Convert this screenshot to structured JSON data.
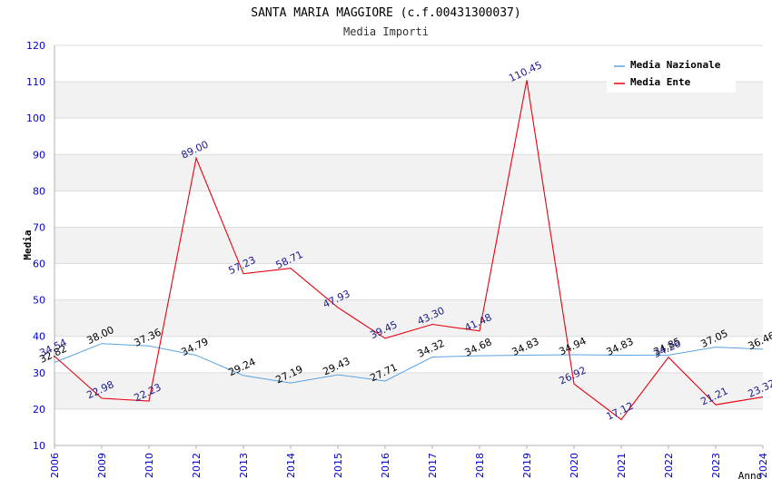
{
  "chart_data": {
    "type": "line",
    "title": "SANTA MARIA MAGGIORE (c.f.00431300037)",
    "subtitle": "Media Importi",
    "xlabel": "Anno",
    "ylabel": "Media",
    "ylim": [
      10,
      120
    ],
    "yticks": [
      10,
      20,
      30,
      40,
      50,
      60,
      70,
      80,
      90,
      100,
      110,
      120
    ],
    "categories": [
      "2006",
      "2009",
      "2010",
      "2012",
      "2013",
      "2014",
      "2015",
      "2016",
      "2017",
      "2018",
      "2019",
      "2020",
      "2021",
      "2022",
      "2023",
      "2024"
    ],
    "series": [
      {
        "name": "Media Nazionale",
        "color": "#5ba3e0",
        "label_color": "#000000",
        "values": [
          32.82,
          38.0,
          37.36,
          34.79,
          29.24,
          27.19,
          29.43,
          27.71,
          34.32,
          34.68,
          34.83,
          34.94,
          34.83,
          34.85,
          37.05,
          36.46
        ],
        "labels": [
          "32.82",
          "38.00",
          "37.36",
          "34.79",
          "29.24",
          "27.19",
          "29.43",
          "27.71",
          "34.32",
          "34.68",
          "34.83",
          "34.94",
          "34.83",
          "34.85",
          "37.05",
          "36.46"
        ]
      },
      {
        "name": "Media Ente",
        "color": "#e8000d",
        "label_color": "#1a1a8c",
        "values": [
          34.54,
          22.98,
          22.23,
          89.0,
          57.23,
          58.71,
          47.93,
          39.45,
          43.3,
          41.48,
          110.45,
          26.92,
          17.12,
          34.26,
          21.21,
          23.32
        ],
        "labels": [
          "34.54",
          "22.98",
          "22.23",
          "89.00",
          "57.23",
          "58.71",
          "47.93",
          "39.45",
          "43.30",
          "41.48",
          "110.45",
          "26.92",
          "17.12",
          "34.26",
          "21.21",
          "23.32"
        ]
      }
    ],
    "legend_position": "top-right",
    "grid": true,
    "band_color": "#f2f2f2",
    "axis_label_color": "#0000cc"
  }
}
